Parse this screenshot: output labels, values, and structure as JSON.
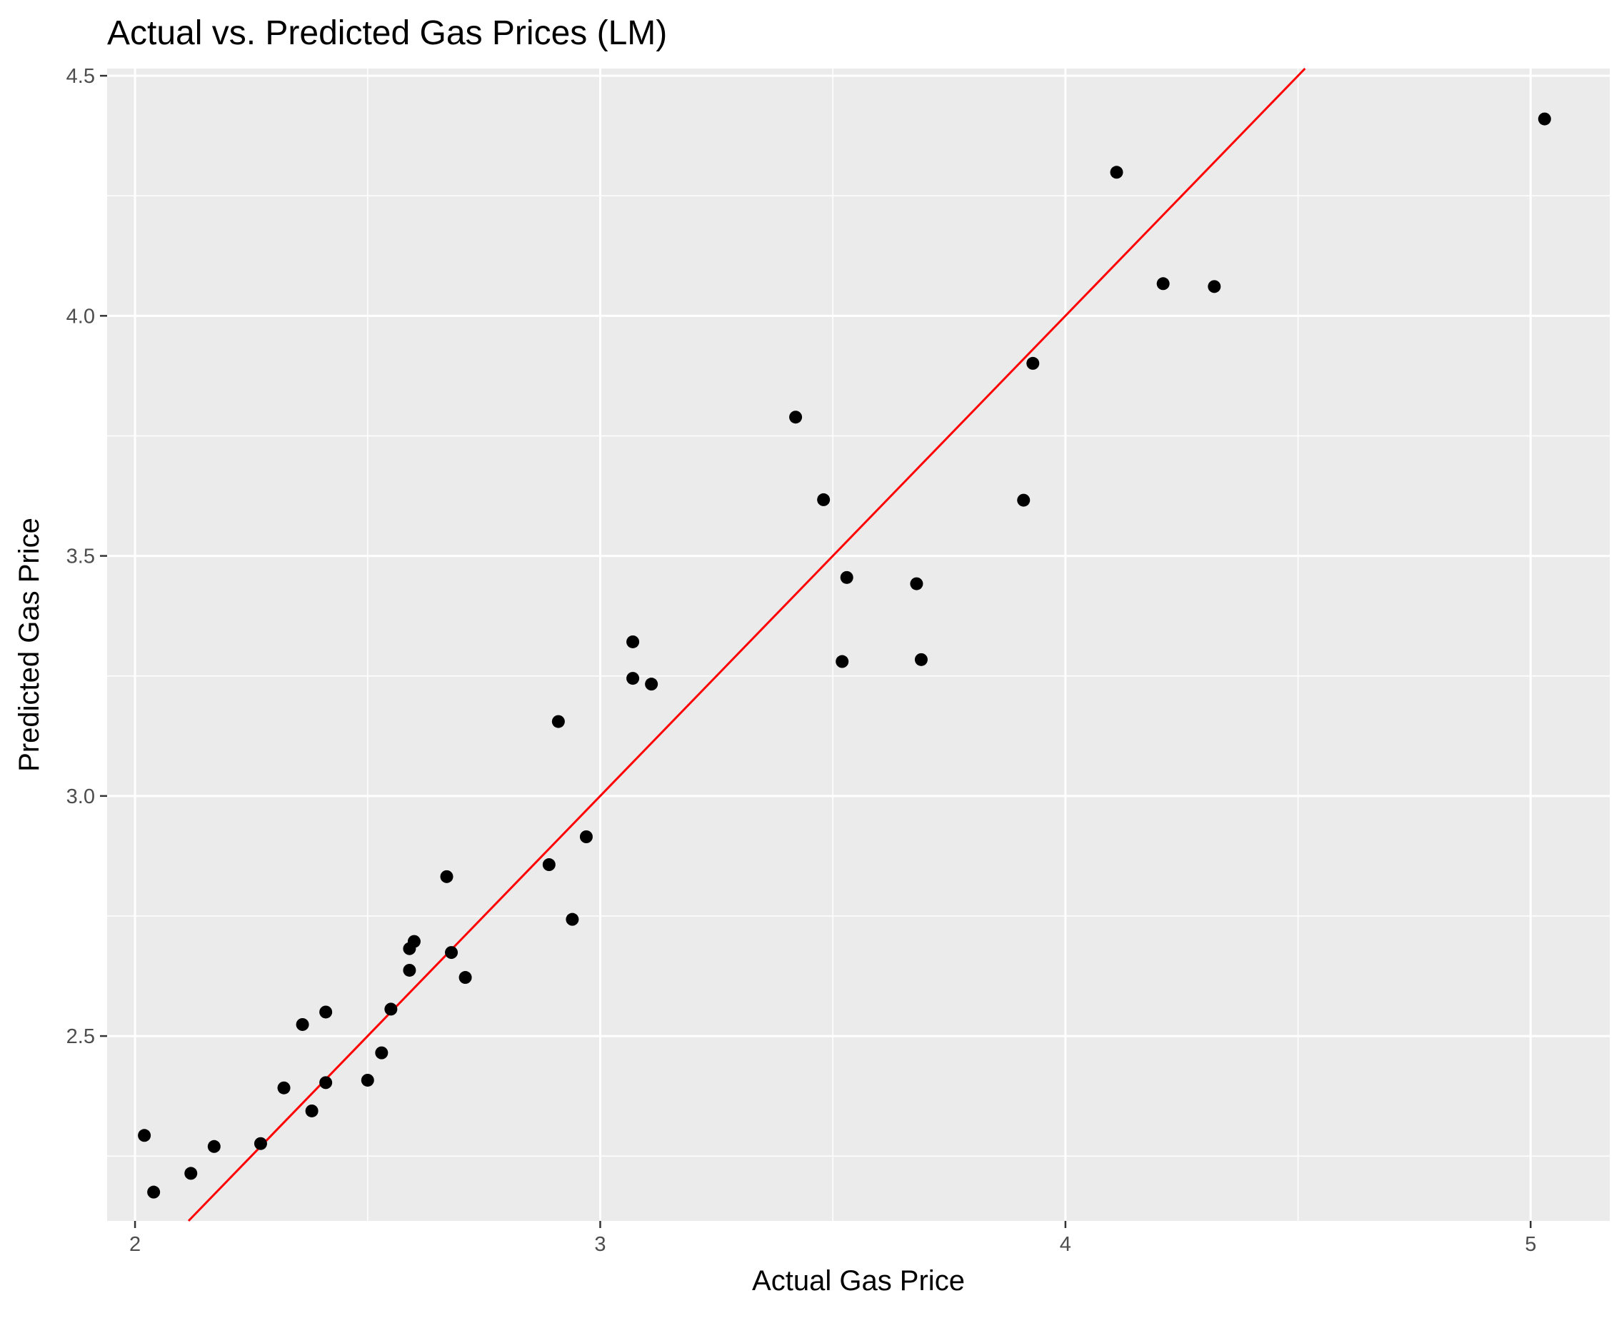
{
  "chart_data": {
    "type": "scatter",
    "title": "Actual vs. Predicted Gas Prices (LM)",
    "xlabel": "Actual Gas Price",
    "ylabel": "Predicted Gas Price",
    "xlim": [
      1.94,
      5.17
    ],
    "ylim": [
      2.115,
      4.515
    ],
    "x_ticks": [
      2,
      3,
      4,
      5
    ],
    "x_tick_labels": [
      "2",
      "3",
      "4",
      "5"
    ],
    "y_ticks": [
      2.5,
      3.0,
      3.5,
      4.0,
      4.5
    ],
    "y_tick_labels": [
      "2.5",
      "3.0",
      "3.5",
      "4.0",
      "4.5"
    ],
    "grid": true,
    "reference_line": {
      "type": "identity",
      "slope": 1,
      "intercept": 0,
      "color": "#ff0000"
    },
    "point_color": "#000000",
    "panel_background": "#ebebeb",
    "grid_color": "#ffffff",
    "points": [
      {
        "x": 2.02,
        "y": 2.293
      },
      {
        "x": 2.04,
        "y": 2.175
      },
      {
        "x": 2.12,
        "y": 2.214
      },
      {
        "x": 2.17,
        "y": 2.27
      },
      {
        "x": 2.27,
        "y": 2.276
      },
      {
        "x": 2.32,
        "y": 2.392
      },
      {
        "x": 2.36,
        "y": 2.524
      },
      {
        "x": 2.38,
        "y": 2.344
      },
      {
        "x": 2.41,
        "y": 2.403
      },
      {
        "x": 2.41,
        "y": 2.55
      },
      {
        "x": 2.5,
        "y": 2.408
      },
      {
        "x": 2.53,
        "y": 2.465
      },
      {
        "x": 2.55,
        "y": 2.556
      },
      {
        "x": 2.59,
        "y": 2.637
      },
      {
        "x": 2.59,
        "y": 2.682
      },
      {
        "x": 2.6,
        "y": 2.697
      },
      {
        "x": 2.67,
        "y": 2.832
      },
      {
        "x": 2.68,
        "y": 2.674
      },
      {
        "x": 2.71,
        "y": 2.622
      },
      {
        "x": 2.89,
        "y": 2.857
      },
      {
        "x": 2.91,
        "y": 3.155
      },
      {
        "x": 2.94,
        "y": 2.743
      },
      {
        "x": 2.97,
        "y": 2.915
      },
      {
        "x": 3.07,
        "y": 3.245
      },
      {
        "x": 3.07,
        "y": 3.321
      },
      {
        "x": 3.11,
        "y": 3.233
      },
      {
        "x": 3.42,
        "y": 3.789
      },
      {
        "x": 3.48,
        "y": 3.617
      },
      {
        "x": 3.52,
        "y": 3.28
      },
      {
        "x": 3.53,
        "y": 3.455
      },
      {
        "x": 3.68,
        "y": 3.442
      },
      {
        "x": 3.69,
        "y": 3.284
      },
      {
        "x": 3.91,
        "y": 3.616
      },
      {
        "x": 3.93,
        "y": 3.901
      },
      {
        "x": 4.11,
        "y": 4.299
      },
      {
        "x": 4.21,
        "y": 4.067
      },
      {
        "x": 4.32,
        "y": 4.061
      },
      {
        "x": 5.03,
        "y": 4.41
      }
    ]
  }
}
